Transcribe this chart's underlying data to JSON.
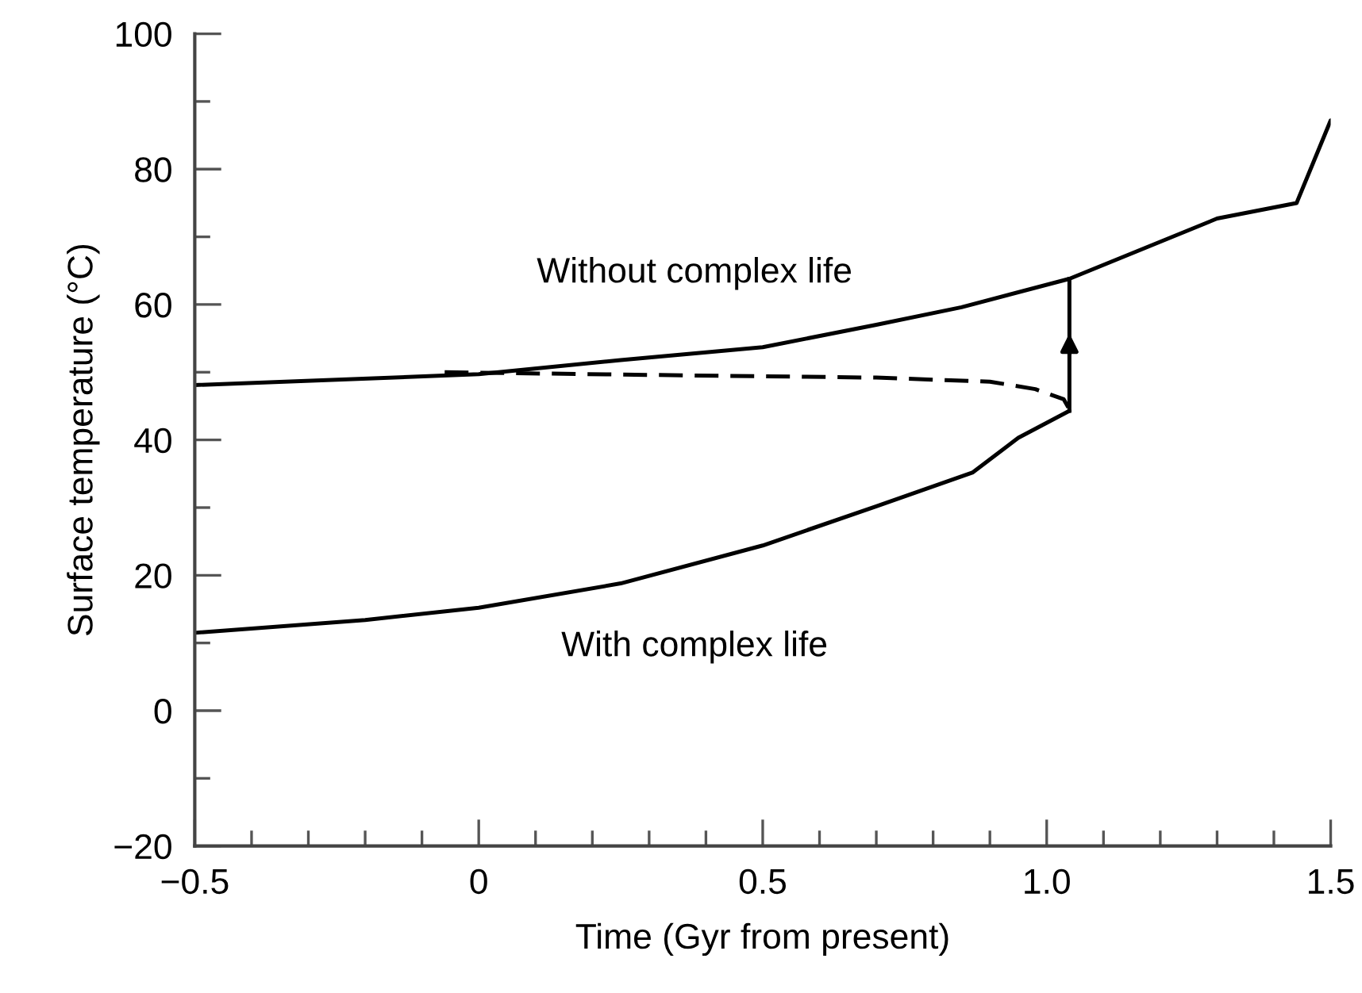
{
  "chart_data": {
    "type": "line",
    "xlabel": "Time (Gyr from present)",
    "ylabel": "Surface temperature (°C)",
    "xlim": [
      -0.5,
      1.5
    ],
    "ylim": [
      -20,
      100
    ],
    "xticks": [
      {
        "value": -0.5,
        "label": "−0.5"
      },
      {
        "value": -0.4,
        "label": null
      },
      {
        "value": -0.3,
        "label": null
      },
      {
        "value": -0.2,
        "label": null
      },
      {
        "value": -0.1,
        "label": null
      },
      {
        "value": 0,
        "label": "0"
      },
      {
        "value": 0.1,
        "label": null
      },
      {
        "value": 0.2,
        "label": null
      },
      {
        "value": 0.3,
        "label": null
      },
      {
        "value": 0.4,
        "label": null
      },
      {
        "value": 0.5,
        "label": "0.5"
      },
      {
        "value": 0.6,
        "label": null
      },
      {
        "value": 0.7,
        "label": null
      },
      {
        "value": 0.8,
        "label": null
      },
      {
        "value": 0.9,
        "label": null
      },
      {
        "value": 1.0,
        "label": "1.0"
      },
      {
        "value": 1.1,
        "label": null
      },
      {
        "value": 1.2,
        "label": null
      },
      {
        "value": 1.3,
        "label": null
      },
      {
        "value": 1.4,
        "label": null
      },
      {
        "value": 1.5,
        "label": "1.5"
      }
    ],
    "yticks": [
      {
        "value": -20,
        "label": "−20"
      },
      {
        "value": -10,
        "label": null
      },
      {
        "value": 0,
        "label": "0"
      },
      {
        "value": 10,
        "label": null
      },
      {
        "value": 20,
        "label": "20"
      },
      {
        "value": 30,
        "label": null
      },
      {
        "value": 40,
        "label": "40"
      },
      {
        "value": 50,
        "label": null
      },
      {
        "value": 60,
        "label": "60"
      },
      {
        "value": 70,
        "label": null
      },
      {
        "value": 80,
        "label": "80"
      },
      {
        "value": 90,
        "label": null
      },
      {
        "value": 100,
        "label": "100"
      }
    ],
    "grid": false,
    "legend": false,
    "marker": "none",
    "series": [
      {
        "color": "#000000",
        "line_style": "solid",
        "x": [
          -0.5,
          0,
          0.25,
          0.5,
          0.7,
          0.85,
          1.04,
          1.3,
          1.44,
          1.5
        ],
        "values": [
          48.1,
          49.7,
          51.8,
          53.7,
          57,
          59.6,
          63.8,
          72.7,
          75,
          87.2
        ]
      },
      {
        "color": "#000000",
        "line_style": "dashed",
        "x": [
          -0.06,
          0.3,
          0.7,
          0.9,
          0.98,
          1.03,
          1.04
        ],
        "values": [
          50,
          49.6,
          49.2,
          48.6,
          47.5,
          46,
          44.5
        ]
      },
      {
        "color": "#000000",
        "line_style": "solid",
        "x": [
          -0.5,
          -0.2,
          0,
          0.25,
          0.5,
          0.7,
          0.87,
          0.95,
          1.04
        ],
        "values": [
          11.5,
          13.4,
          15.2,
          18.8,
          24.4,
          30.2,
          35.2,
          40.3,
          44.3
        ]
      }
    ],
    "annotations": [
      "Without complex life",
      "With complex life"
    ]
  }
}
